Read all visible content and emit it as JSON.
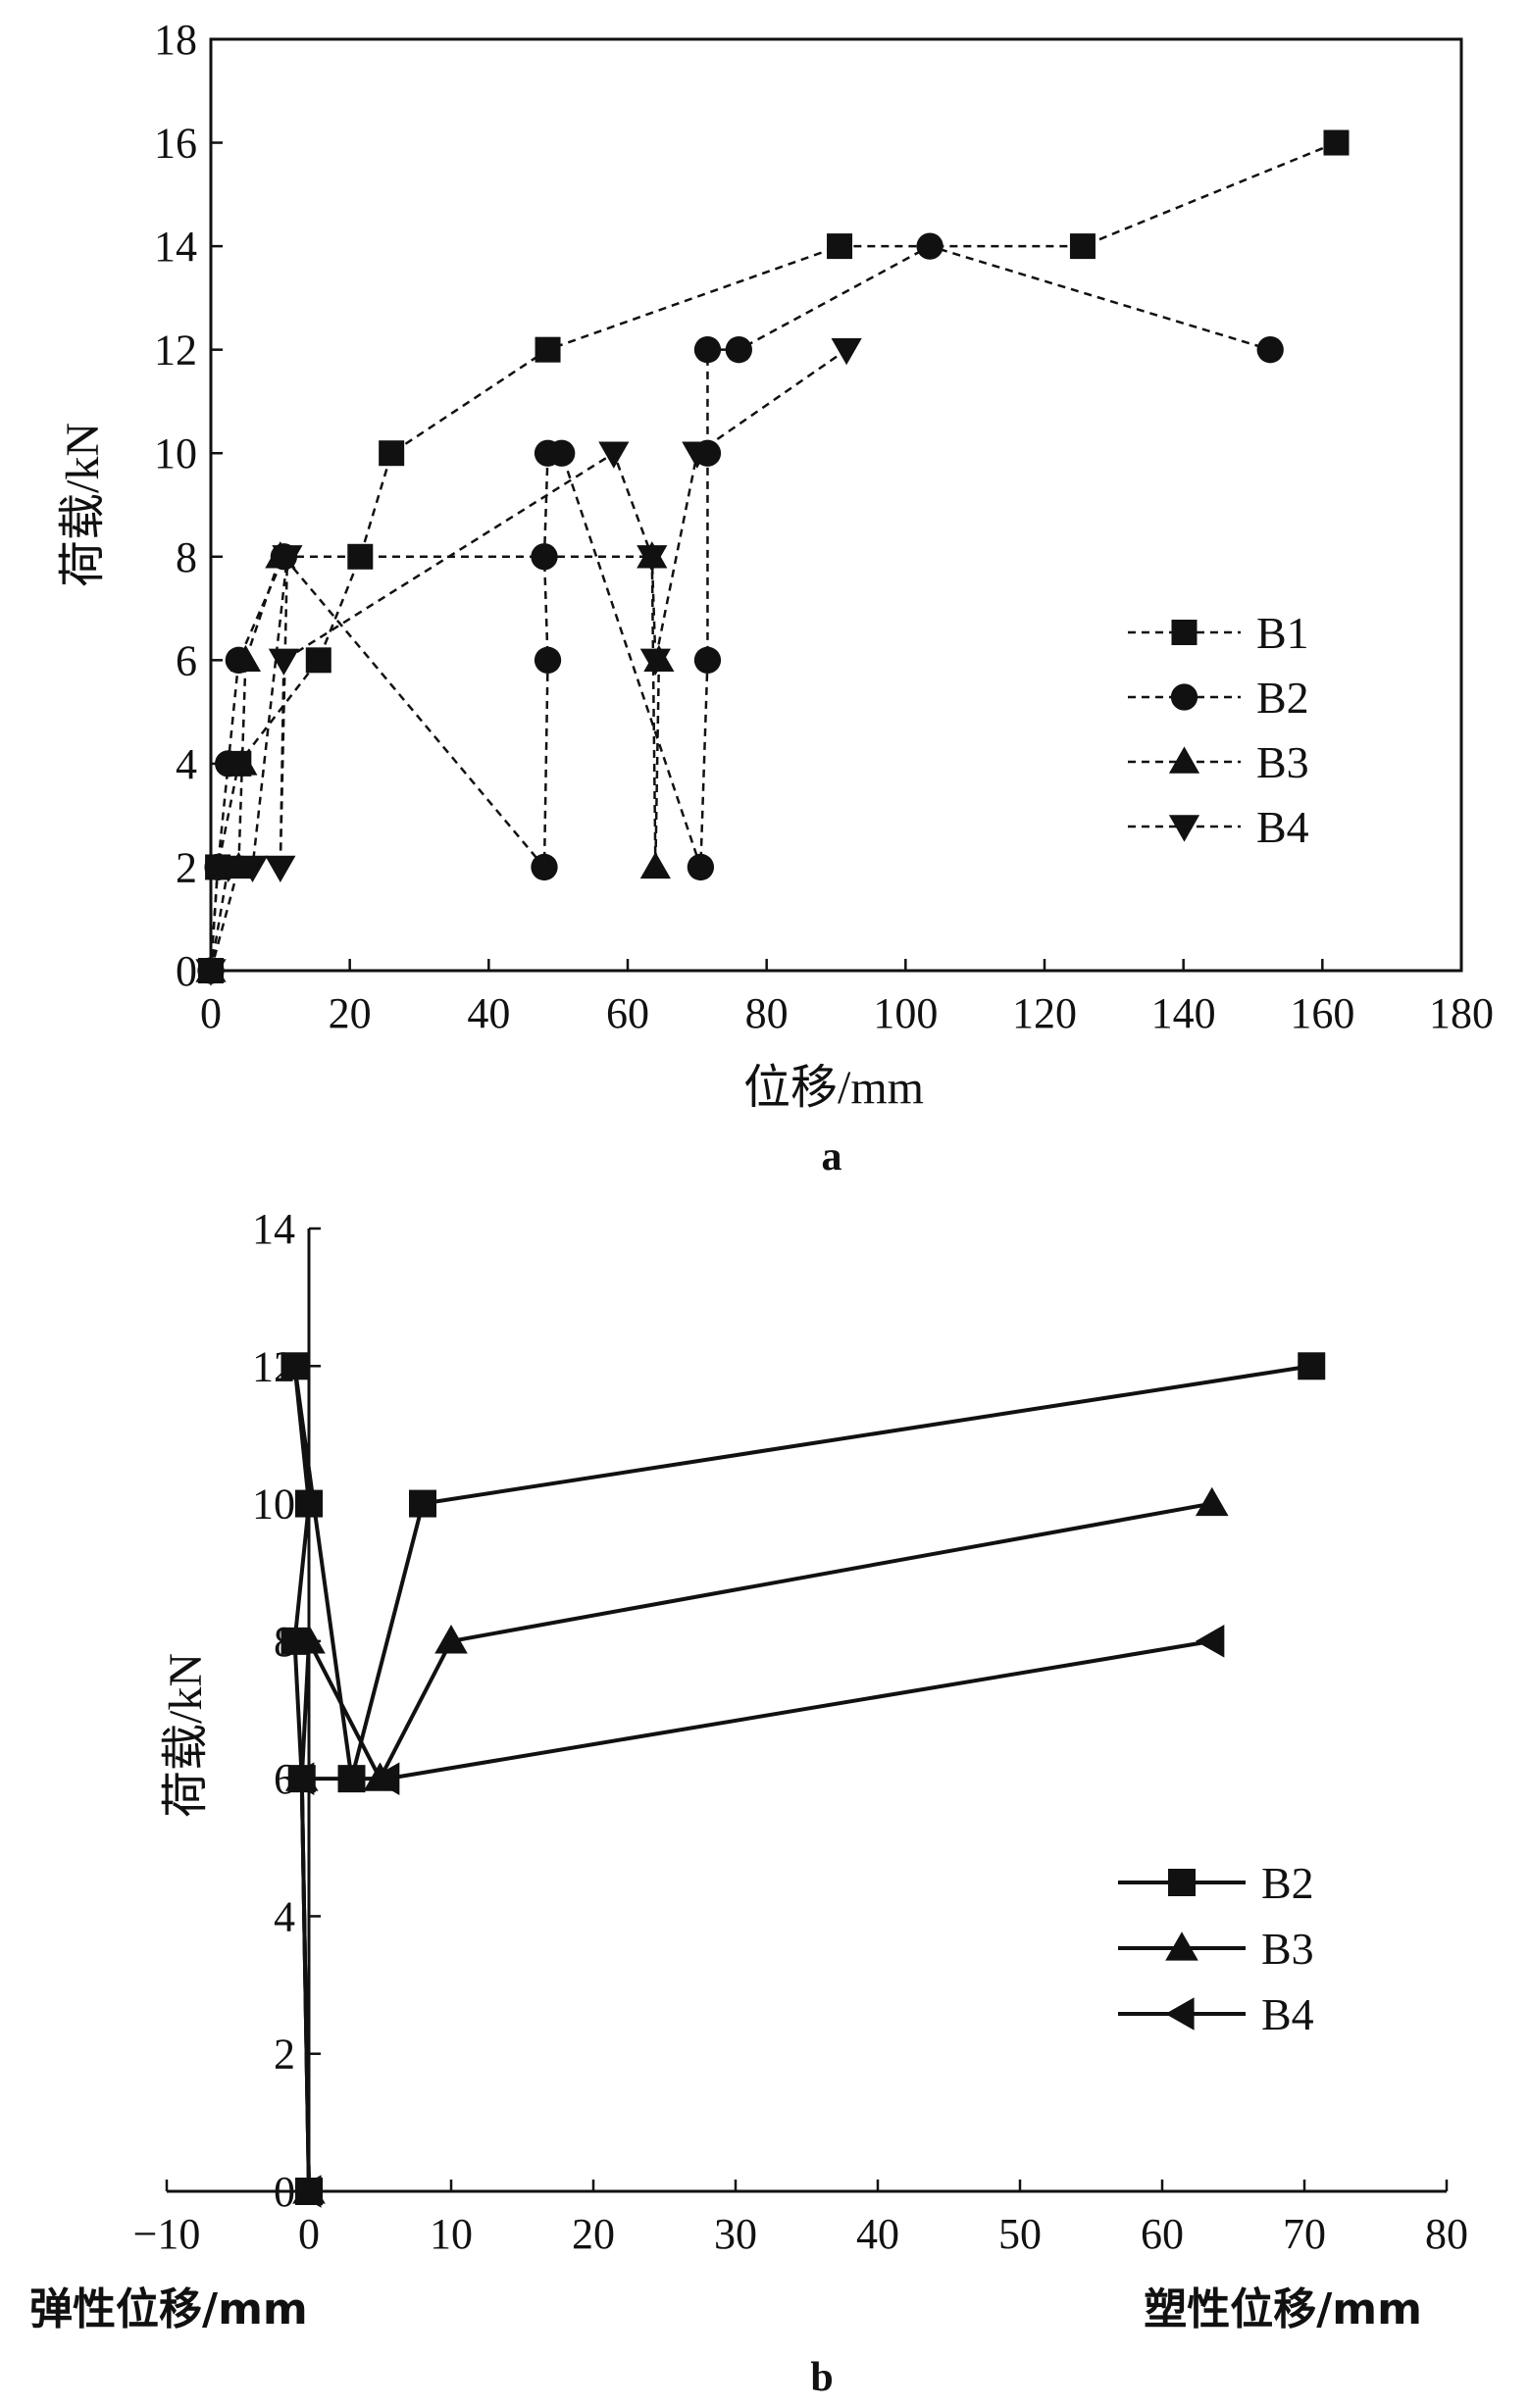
{
  "chart_data": [
    {
      "panel_label": "a",
      "type": "line",
      "xlabel": "位移/mm",
      "ylabel": "荷载/kN",
      "xlim": [
        0,
        180
      ],
      "ylim": [
        0,
        18
      ],
      "xticks": [
        0,
        20,
        40,
        60,
        80,
        100,
        120,
        140,
        160,
        180
      ],
      "yticks": [
        0,
        2,
        4,
        6,
        8,
        10,
        12,
        14,
        16,
        18
      ],
      "line_style": "dashed",
      "legend_position": "lower-right",
      "series": [
        {
          "name": "B1",
          "marker": "square",
          "x": [
            0,
            1,
            4,
            15.5,
            21.5,
            26,
            48.5,
            90.5,
            125.5,
            162
          ],
          "y": [
            0,
            2,
            4,
            6,
            8,
            10,
            12,
            14,
            14,
            16
          ]
        },
        {
          "name": "B2",
          "marker": "circle",
          "x": [
            0,
            1,
            2.5,
            4,
            10.5,
            48,
            48.5,
            48,
            48.5,
            50.5,
            70.5,
            71.5,
            71.5,
            71.5,
            76,
            103.5,
            152.5
          ],
          "y": [
            0,
            2,
            4,
            6,
            8,
            2,
            6,
            8,
            10,
            10,
            2,
            6,
            10,
            12,
            12,
            14,
            12
          ]
        },
        {
          "name": "B3",
          "marker": "triangle-up",
          "x": [
            0,
            4,
            4.5,
            5,
            10,
            63.5,
            64,
            64.5
          ],
          "y": [
            0,
            2,
            4,
            6,
            8,
            8,
            2,
            6
          ]
        },
        {
          "name": "B4",
          "marker": "triangle-down",
          "x": [
            0,
            2.5,
            6,
            11,
            10,
            10.5,
            58,
            63.5,
            64,
            70,
            91.5
          ],
          "y": [
            0,
            2,
            2,
            8,
            2,
            6,
            10,
            8,
            6,
            10,
            12
          ]
        }
      ]
    },
    {
      "panel_label": "b",
      "type": "line",
      "xlabel_left": "弹性位移/mm",
      "xlabel_right": "塑性位移/mm",
      "ylabel": "荷载/kN",
      "xlim": [
        -10,
        80
      ],
      "ylim": [
        0,
        14
      ],
      "xticks": [
        -10,
        0,
        10,
        20,
        30,
        40,
        50,
        60,
        70,
        80
      ],
      "yticks": [
        0,
        2,
        4,
        6,
        8,
        10,
        12,
        14
      ],
      "line_style": "solid",
      "legend_position": "lower-right",
      "series": [
        {
          "name": "B2",
          "marker": "square",
          "x": [
            0,
            -0.5,
            -1,
            0,
            -1,
            3,
            8,
            70.5
          ],
          "y": [
            0,
            6,
            8,
            10,
            12,
            6,
            10,
            12
          ]
        },
        {
          "name": "B3",
          "marker": "triangle-up",
          "x": [
            0,
            -0.5,
            0,
            5,
            10,
            63.5
          ],
          "y": [
            0,
            6,
            8,
            6,
            8,
            10
          ]
        },
        {
          "name": "B4",
          "marker": "triangle-left",
          "x": [
            0,
            -0.5,
            5.5,
            63.5
          ],
          "y": [
            0,
            6,
            6,
            8
          ]
        }
      ]
    }
  ]
}
